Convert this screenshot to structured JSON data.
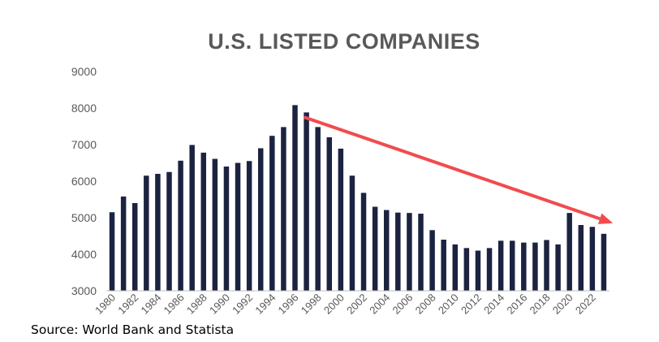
{
  "chart_data": {
    "type": "bar",
    "title": "U.S. LISTED COMPANIES",
    "xlabel": "",
    "ylabel": "",
    "ylim": [
      3000,
      9000
    ],
    "yticks": [
      3000,
      4000,
      5000,
      6000,
      7000,
      8000,
      9000
    ],
    "categories": [
      "1980",
      "1981",
      "1982",
      "1983",
      "1984",
      "1985",
      "1986",
      "1987",
      "1988",
      "1989",
      "1990",
      "1991",
      "1992",
      "1993",
      "1994",
      "1995",
      "1996",
      "1997",
      "1998",
      "1999",
      "2000",
      "2001",
      "2002",
      "2003",
      "2004",
      "2005",
      "2006",
      "2007",
      "2008",
      "2009",
      "2010",
      "2011",
      "2012",
      "2013",
      "2014",
      "2015",
      "2016",
      "2017",
      "2018",
      "2019",
      "2020",
      "2021",
      "2022",
      "2023"
    ],
    "tick_labels": [
      "1980",
      "1982",
      "1984",
      "1986",
      "1988",
      "1990",
      "1992",
      "1994",
      "1996",
      "1998",
      "2000",
      "2002",
      "2004",
      "2006",
      "2008",
      "2010",
      "2012",
      "2014",
      "2016",
      "2018",
      "2020",
      "2022"
    ],
    "values": [
      5150,
      5580,
      5400,
      6150,
      6200,
      6250,
      6560,
      6990,
      6780,
      6610,
      6400,
      6500,
      6550,
      6900,
      7240,
      7480,
      8080,
      7880,
      7480,
      7200,
      6890,
      6150,
      5680,
      5300,
      5210,
      5140,
      5130,
      5110,
      4660,
      4400,
      4270,
      4170,
      4100,
      4170,
      4370,
      4370,
      4320,
      4320,
      4390,
      4270,
      5130,
      4800,
      4750,
      4560
    ],
    "bar_color": "#1c2341",
    "annotations": [
      {
        "type": "arrow",
        "from": {
          "year": 1996.8,
          "value": 7750
        },
        "to": {
          "year": 2023.8,
          "value": 4850
        },
        "color": "#f24b4e"
      }
    ],
    "source": "Source: World Bank and Statista"
  }
}
